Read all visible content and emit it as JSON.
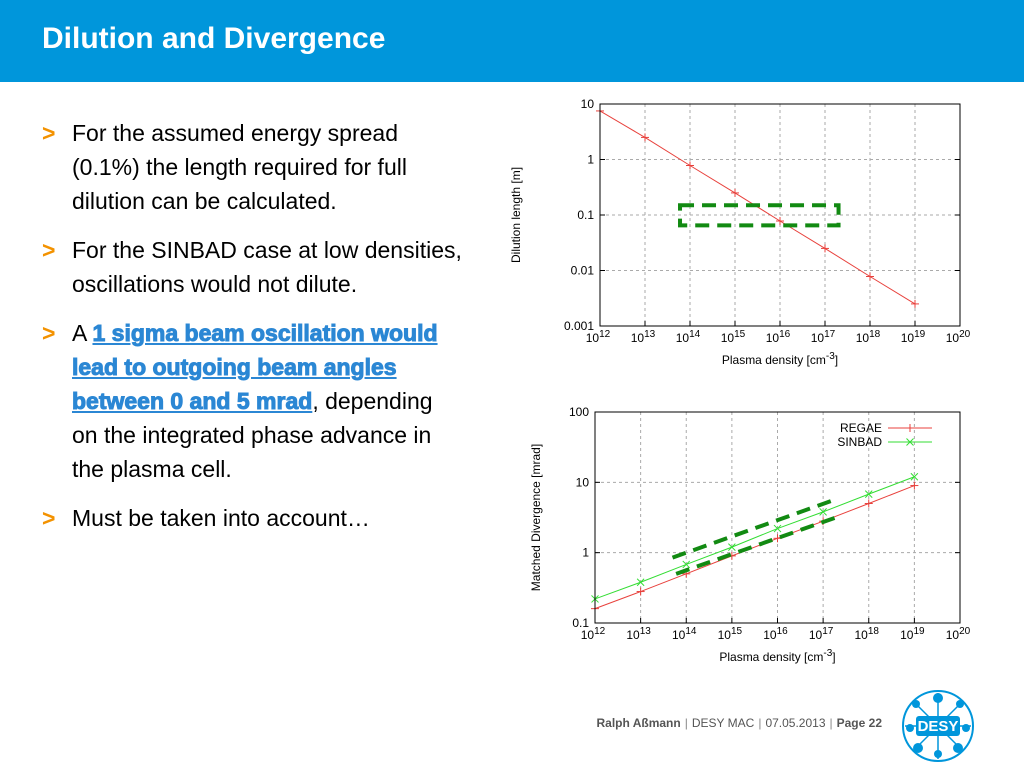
{
  "slide": {
    "title": "Dilution and Divergence",
    "bullets": [
      {
        "marker": ">",
        "text": "For the assumed energy spread (0.1%) the length required for full dilution can be calculated."
      },
      {
        "marker": ">",
        "text": "For the SINBAD case at low densities, oscillations would not dilute."
      },
      {
        "marker": ">",
        "prefix": "A ",
        "highlight": "1 sigma beam oscillation would lead to outgoing beam angles between 0 and 5 mrad",
        "suffix": ", depending on the integrated phase advance in the plasma cell."
      },
      {
        "marker": ">",
        "text": "Must be taken into account…"
      }
    ]
  },
  "footer": {
    "author": "Ralph Aßmann",
    "org": "DESY MAC",
    "date": "07.05.2013",
    "page": "Page 22"
  },
  "logo": {
    "text": "DESY"
  },
  "colors": {
    "header": "#0096db",
    "marker": "#f39200",
    "highlight": "#2b87d4",
    "regae": "#e8413c",
    "sinbad": "#33dd33",
    "box": "#128a12"
  },
  "chart_data": [
    {
      "type": "line",
      "xlabel": "Plasma density [cm-3]",
      "ylabel": "Dilution length [m]",
      "x_scale": "log",
      "y_scale": "log",
      "xlim": [
        1000000000000.0,
        1e+20
      ],
      "ylim": [
        0.001,
        10
      ],
      "x_ticks": [
        {
          "base": "10",
          "exp": "12"
        },
        {
          "base": "10",
          "exp": "13"
        },
        {
          "base": "10",
          "exp": "14"
        },
        {
          "base": "10",
          "exp": "15"
        },
        {
          "base": "10",
          "exp": "16"
        },
        {
          "base": "10",
          "exp": "17"
        },
        {
          "base": "10",
          "exp": "18"
        },
        {
          "base": "10",
          "exp": "19"
        },
        {
          "base": "10",
          "exp": "20"
        }
      ],
      "y_ticks": [
        "10",
        "1",
        "0.1",
        "0.01",
        "0.001"
      ],
      "grid": true,
      "series": [
        {
          "x": [
            1000000000000.0,
            10000000000000.0,
            100000000000000.0,
            1000000000000000.0,
            1e+16,
            1e+17,
            1e+18,
            1e+19
          ],
          "y": [
            7.5,
            2.5,
            0.78,
            0.25,
            0.078,
            0.025,
            0.0078,
            0.0025
          ]
        }
      ],
      "annotations": [
        {
          "type": "dashed-rectangle",
          "x": [
            60000000000000.0,
            2e+17
          ],
          "y": [
            0.065,
            0.15
          ]
        }
      ]
    },
    {
      "type": "line",
      "xlabel": "Plasma density [cm-3]",
      "ylabel": "Matched Divergence [mrad]",
      "x_scale": "log",
      "y_scale": "log",
      "xlim": [
        1000000000000.0,
        1e+20
      ],
      "ylim": [
        0.1,
        100
      ],
      "x_ticks": [
        {
          "base": "10",
          "exp": "12"
        },
        {
          "base": "10",
          "exp": "13"
        },
        {
          "base": "10",
          "exp": "14"
        },
        {
          "base": "10",
          "exp": "15"
        },
        {
          "base": "10",
          "exp": "16"
        },
        {
          "base": "10",
          "exp": "17"
        },
        {
          "base": "10",
          "exp": "18"
        },
        {
          "base": "10",
          "exp": "19"
        },
        {
          "base": "10",
          "exp": "20"
        }
      ],
      "y_ticks": [
        "100",
        "10",
        "1",
        "0.1"
      ],
      "grid": true,
      "legend_position": "top-right",
      "series": [
        {
          "name": "REGAE",
          "x": [
            1000000000000.0,
            10000000000000.0,
            100000000000000.0,
            1000000000000000.0,
            1e+16,
            1e+17,
            1e+18,
            1e+19
          ],
          "y": [
            0.16,
            0.28,
            0.5,
            0.9,
            1.6,
            2.8,
            5.0,
            9.0
          ]
        },
        {
          "name": "SINBAD",
          "x": [
            1000000000000.0,
            10000000000000.0,
            100000000000000.0,
            1000000000000000.0,
            1e+16,
            1e+17,
            1e+18,
            1e+19
          ],
          "y": [
            0.22,
            0.38,
            0.68,
            1.2,
            2.2,
            3.8,
            6.8,
            12
          ]
        }
      ],
      "annotations": [
        {
          "type": "dashed-band",
          "lines": [
            [
              [
                60000000000000.0,
                0.5
              ],
              [
                2e+17,
                3.2
              ]
            ],
            [
              [
                50000000000000.0,
                0.85
              ],
              [
                2e+17,
                5.8
              ]
            ]
          ]
        }
      ]
    }
  ]
}
